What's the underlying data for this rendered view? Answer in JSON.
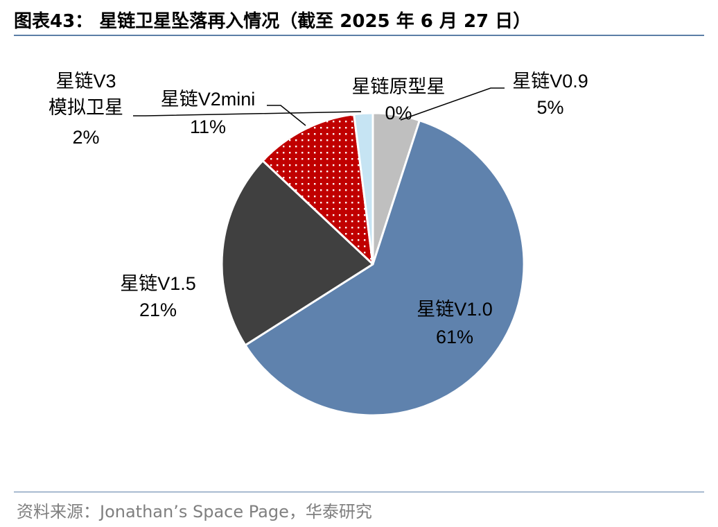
{
  "header": {
    "title": "图表43： 星链卫星坠落再入情况（截至 2025 年 6 月 27 日）"
  },
  "footer": {
    "source": "资料来源：Jonathan’s Space Page，华泰研究"
  },
  "colors": {
    "rule": "#5b7ea6",
    "source_text": "#7f7f7f"
  },
  "chart_data": {
    "type": "pie",
    "title": "",
    "start_angle_deg": 0,
    "direction": "clockwise",
    "slices": [
      {
        "name": "星链原型星",
        "value": 0,
        "label": "0%",
        "color": "#ffffff"
      },
      {
        "name": "星链V0.9",
        "value": 5,
        "label": "5%",
        "color": "#bfbfbf"
      },
      {
        "name": "星链V1.0",
        "value": 61,
        "label": "61%",
        "color": "#5f82ad"
      },
      {
        "name": "星链V1.5",
        "value": 21,
        "label": "21%",
        "color": "#404040"
      },
      {
        "name": "星链V2mini",
        "value": 11,
        "label": "11%",
        "color": "#c00000",
        "pattern": "white-dots"
      },
      {
        "name": "星链V3模拟卫星",
        "value": 2,
        "label": "2%",
        "color": "#c6e4f3"
      }
    ]
  }
}
